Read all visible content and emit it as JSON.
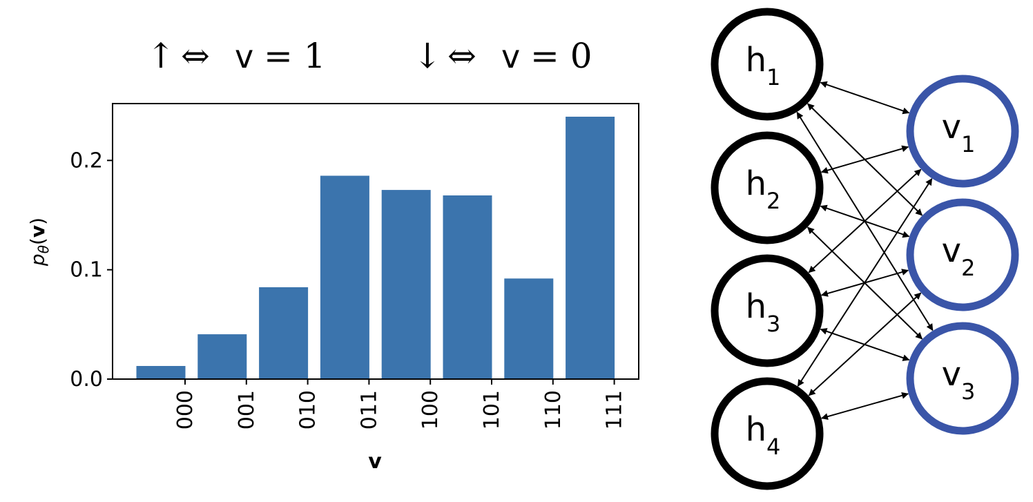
{
  "annotations": {
    "up_symbol": "↑",
    "up_equiv": "⇔",
    "up_var": "v",
    "up_eq": "= 1",
    "down_symbol": "↓",
    "down_equiv": "⇔",
    "down_var": "v",
    "down_eq": "= 0"
  },
  "chart_data": {
    "type": "bar",
    "categories": [
      "000",
      "001",
      "010",
      "011",
      "100",
      "101",
      "110",
      "111"
    ],
    "values": [
      0.012,
      0.041,
      0.084,
      0.186,
      0.173,
      0.168,
      0.092,
      0.24
    ],
    "xlabel": "v",
    "ylabel_main": "p",
    "ylabel_sub": "θ",
    "ylabel_arg_open": "(",
    "ylabel_arg": "v",
    "ylabel_arg_close": ")",
    "ylim": [
      0,
      0.252
    ],
    "yticks": [
      0.0,
      0.1,
      0.2
    ],
    "ytick_labels": [
      "0.0",
      "0.1",
      "0.2"
    ],
    "bar_color": "#3b74ad",
    "grid": false
  },
  "network": {
    "hidden_nodes": [
      {
        "id": "h1",
        "base": "h",
        "sub": "1"
      },
      {
        "id": "h2",
        "base": "h",
        "sub": "2"
      },
      {
        "id": "h3",
        "base": "h",
        "sub": "3"
      },
      {
        "id": "h4",
        "base": "h",
        "sub": "4"
      }
    ],
    "visible_nodes": [
      {
        "id": "v1",
        "base": "v",
        "sub": "1"
      },
      {
        "id": "v2",
        "base": "v",
        "sub": "2"
      },
      {
        "id": "v3",
        "base": "v",
        "sub": "3"
      }
    ],
    "edges": "fully-connected bidirectional",
    "hidden_color": "#000000",
    "visible_color": "#3a55a8"
  }
}
